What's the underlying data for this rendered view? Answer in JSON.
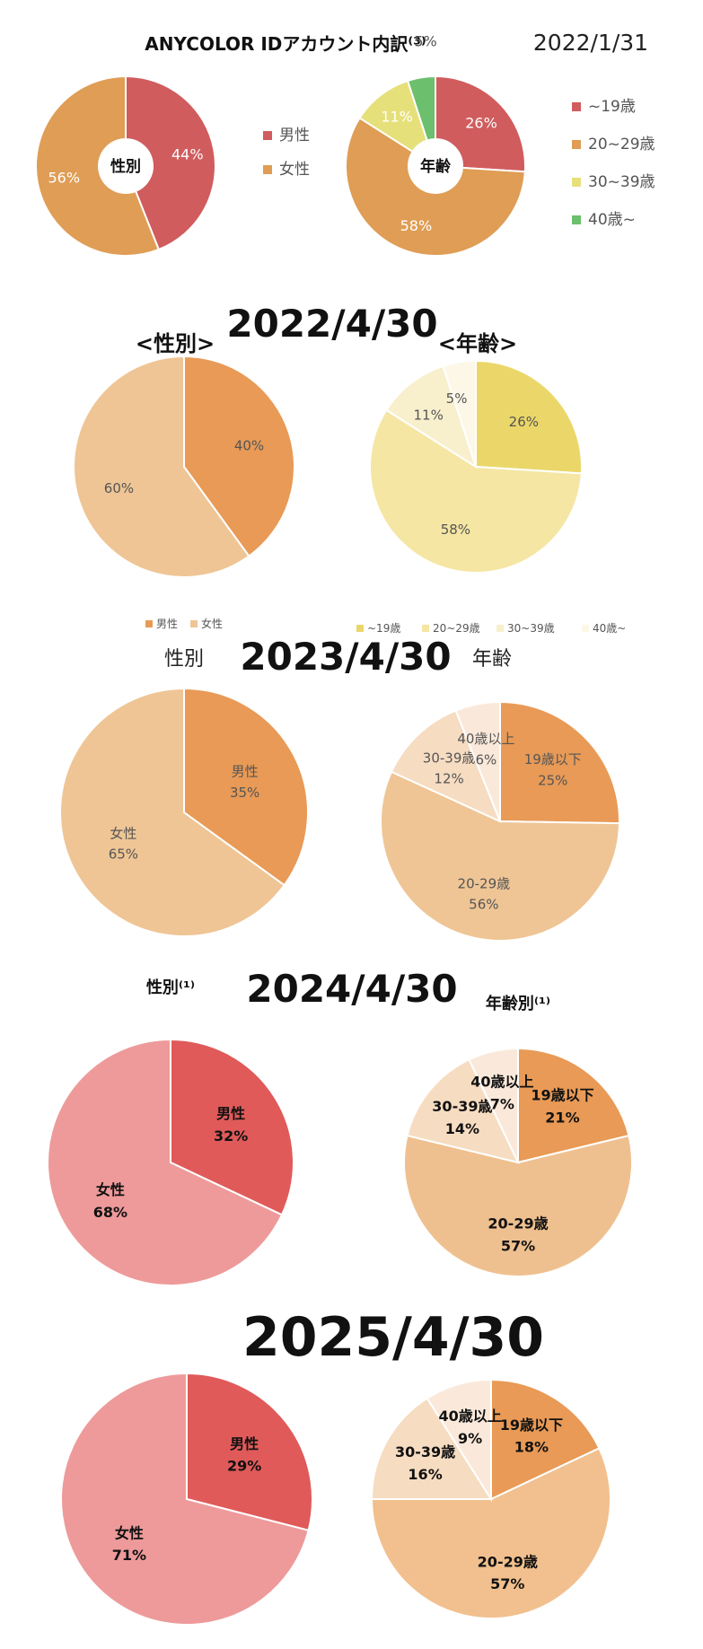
{
  "chart_data": [
    {
      "type": "pie",
      "section_title": "ANYCOLOR IDアカウント内訳⁽³⁾",
      "date": "2022/1/31",
      "center_label": "性別",
      "legend": [
        "男性",
        "女性"
      ],
      "categories": [
        "男性",
        "女性"
      ],
      "values": [
        44,
        56
      ],
      "labels": [
        "44%",
        "56%"
      ],
      "colors": [
        "#d05c5e",
        "#df9d55"
      ]
    },
    {
      "type": "pie",
      "center_label": "年齢",
      "legend": [
        "~19歳",
        "20~29歳",
        "30~39歳",
        "40歳~"
      ],
      "categories": [
        "~19歳",
        "20~29歳",
        "30~39歳",
        "40歳~"
      ],
      "values": [
        26,
        58,
        11,
        5
      ],
      "labels": [
        "26%",
        "58%",
        "11%",
        "5%"
      ],
      "colors": [
        "#d05c5e",
        "#df9d55",
        "#e6e07b",
        "#6cbf6c"
      ]
    },
    {
      "type": "pie",
      "date": "2022/4/30",
      "heading": "<性別>",
      "legend": [
        "男性",
        "女性"
      ],
      "categories": [
        "男性",
        "女性"
      ],
      "values": [
        40,
        60
      ],
      "labels": [
        "40%",
        "60%"
      ],
      "colors": [
        "#e89a56",
        "#efc595"
      ]
    },
    {
      "type": "pie",
      "heading": "<年齢>",
      "legend": [
        "~19歳",
        "20~29歳",
        "30~39歳",
        "40歳~"
      ],
      "categories": [
        "~19歳",
        "20~29歳",
        "30~39歳",
        "40歳~"
      ],
      "values": [
        26,
        58,
        11,
        5
      ],
      "labels": [
        "26%",
        "58%",
        "11%",
        "5%"
      ],
      "colors": [
        "#ebd769",
        "#f5e6a3",
        "#f8efcd",
        "#fcf7e7"
      ]
    },
    {
      "type": "pie",
      "date": "2023/4/30",
      "heading": "性別",
      "categories": [
        "男性",
        "女性"
      ],
      "values": [
        35,
        65
      ],
      "labels": [
        "男性\n35%",
        "女性\n65%"
      ],
      "colors": [
        "#e89a56",
        "#efc595"
      ]
    },
    {
      "type": "pie",
      "heading": "年齢",
      "categories": [
        "19歳以下",
        "20-29歳",
        "30-39歳",
        "40歳以上"
      ],
      "values": [
        25,
        56,
        12,
        6
      ],
      "labels": [
        "19歳以下\n25%",
        "20-29歳\n56%",
        "30-39歳\n12%",
        "40歳以上\n6%"
      ],
      "colors": [
        "#e89a56",
        "#efc595",
        "#f6dcc1",
        "#fae9da"
      ]
    },
    {
      "type": "pie",
      "date": "2024/4/30",
      "heading": "性別⁽¹⁾",
      "categories": [
        "男性",
        "女性"
      ],
      "values": [
        32,
        68
      ],
      "labels": [
        "男性\n32%",
        "女性\n68%"
      ],
      "colors": [
        "#e05a5a",
        "#ee9a9a"
      ]
    },
    {
      "type": "pie",
      "heading": "年齢別⁽¹⁾",
      "categories": [
        "19歳以下",
        "20-29歳",
        "30-39歳",
        "40歳以上"
      ],
      "values": [
        21,
        57,
        14,
        7
      ],
      "labels": [
        "19歳以下\n21%",
        "20-29歳\n57%",
        "30-39歳\n14%",
        "40歳以上\n7%"
      ],
      "colors": [
        "#e89a56",
        "#efc08f",
        "#f6dcc1",
        "#fae9da"
      ]
    },
    {
      "type": "pie",
      "date": "2025/4/30",
      "categories": [
        "男性",
        "女性"
      ],
      "values": [
        29,
        71
      ],
      "labels": [
        "男性\n29%",
        "女性\n71%"
      ],
      "colors": [
        "#e05a5a",
        "#ee9a9a"
      ]
    },
    {
      "type": "pie",
      "categories": [
        "19歳以下",
        "20-29歳",
        "30-39歳",
        "40歳以上"
      ],
      "values": [
        18,
        57,
        16,
        9
      ],
      "labels": [
        "19歳以下\n18%",
        "20-29歳\n57%",
        "30-39歳\n16%",
        "40歳以上\n9%"
      ],
      "colors": [
        "#e89a56",
        "#f1c08e",
        "#f6dcc1",
        "#fae9da"
      ]
    }
  ]
}
